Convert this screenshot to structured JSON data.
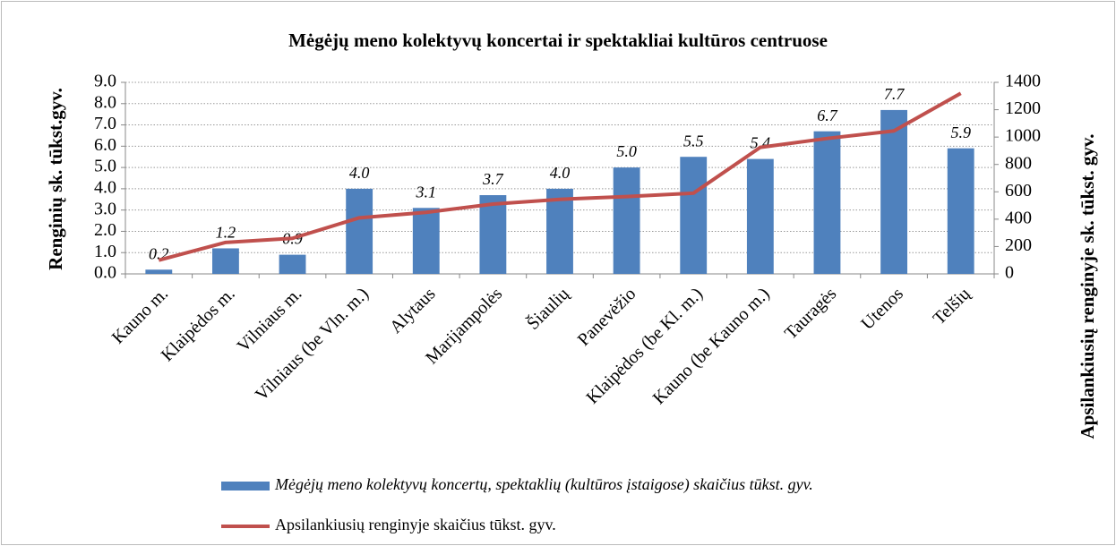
{
  "chart_data": {
    "type": "bar_line",
    "title": "Mėgėjų meno kolektyvų koncertai ir spektakliai kultūros centruose",
    "ylabel": "Renginių sk. tūkst.gyv.",
    "y2label": "Apsilankiusių renginyje sk. tūkst. gyv.",
    "categories": [
      "Kauno m.",
      "Klaipėdos m.",
      "Vilniaus m.",
      "Vilniaus (be Vln. m.)",
      "Alytaus",
      "Marijampolės",
      "Šiaulių",
      "Panevėžio",
      "Klaipėdos (be Kl. m.)",
      "Kauno (be Kauno m.)",
      "Tauragės",
      "Utenos",
      "Telšių"
    ],
    "series": [
      {
        "name": "Mėgėjų meno kolektyvų koncertų, spektaklių (kultūros įstaigose) skaičius tūkst. gyv.",
        "color": "#4f81bd",
        "type": "bar",
        "values": [
          0.2,
          1.2,
          0.9,
          4.0,
          3.1,
          3.7,
          4.0,
          5.0,
          5.5,
          5.4,
          6.7,
          7.7,
          5.9
        ],
        "value_labels": [
          "0.2",
          "1.2",
          "0.9",
          "4.0",
          "3.1",
          "3.7",
          "4.0",
          "5.0",
          "5.5",
          "5.4",
          "6.7",
          "7.7",
          "5.9"
        ]
      },
      {
        "name": "Apsilankiusių renginyje skaičius tūkst. gyv.",
        "color": "#c0504d",
        "type": "line",
        "axis": "y2",
        "values": [
          100,
          230,
          260,
          410,
          450,
          510,
          545,
          565,
          590,
          925,
          990,
          1045,
          1320
        ]
      }
    ],
    "ylim": [
      0,
      9
    ],
    "yticks": [
      {
        "value": 0,
        "label": "0.0"
      },
      {
        "value": 1,
        "label": "1.0"
      },
      {
        "value": 2,
        "label": "2.0"
      },
      {
        "value": 3,
        "label": "3.0"
      },
      {
        "value": 4,
        "label": "4.0"
      },
      {
        "value": 5,
        "label": "5.0"
      },
      {
        "value": 6,
        "label": "6.0"
      },
      {
        "value": 7,
        "label": "7.0"
      },
      {
        "value": 8,
        "label": "8.0"
      },
      {
        "value": 9,
        "label": "9.0"
      }
    ],
    "y2lim": [
      0,
      1400
    ],
    "y2ticks": [
      0,
      200,
      400,
      600,
      800,
      1000,
      1200,
      1400
    ],
    "grid": true
  }
}
